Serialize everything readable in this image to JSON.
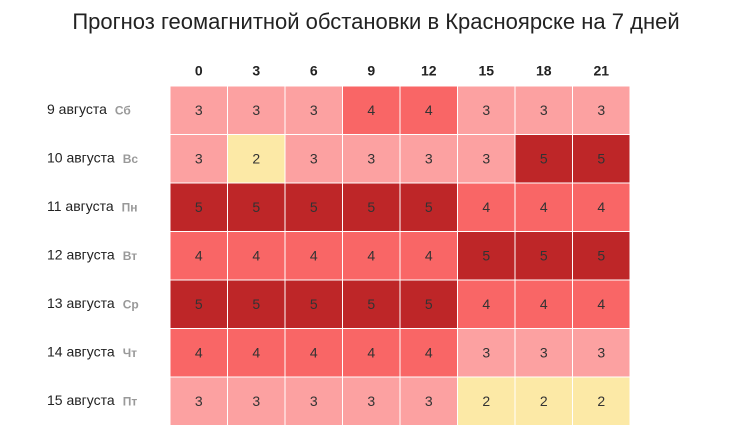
{
  "chart_data": {
    "type": "heatmap",
    "title": "Прогноз геомагнитной обстановки в Красноярске на 7 дней",
    "categories": [
      "0",
      "3",
      "6",
      "9",
      "12",
      "15",
      "18",
      "21"
    ],
    "rows": [
      {
        "date": "9 августа",
        "weekday": "Сб",
        "values": [
          3,
          3,
          3,
          4,
          4,
          3,
          3,
          3
        ]
      },
      {
        "date": "10 августа",
        "weekday": "Вс",
        "values": [
          3,
          2,
          3,
          3,
          3,
          3,
          5,
          5
        ]
      },
      {
        "date": "11 августа",
        "weekday": "Пн",
        "values": [
          5,
          5,
          5,
          5,
          5,
          4,
          4,
          4
        ]
      },
      {
        "date": "12 августа",
        "weekday": "Вт",
        "values": [
          4,
          4,
          4,
          4,
          4,
          5,
          5,
          5
        ]
      },
      {
        "date": "13 августа",
        "weekday": "Ср",
        "values": [
          5,
          5,
          5,
          5,
          5,
          4,
          4,
          4
        ]
      },
      {
        "date": "14 августа",
        "weekday": "Чт",
        "values": [
          4,
          4,
          4,
          4,
          4,
          3,
          3,
          3
        ]
      },
      {
        "date": "15 августа",
        "weekday": "Пт",
        "values": [
          3,
          3,
          3,
          3,
          3,
          2,
          2,
          2
        ]
      }
    ],
    "colors": {
      "2": "#fce9a6",
      "3": "#fca1a1",
      "4": "#f96666",
      "5": "#be2628"
    }
  }
}
